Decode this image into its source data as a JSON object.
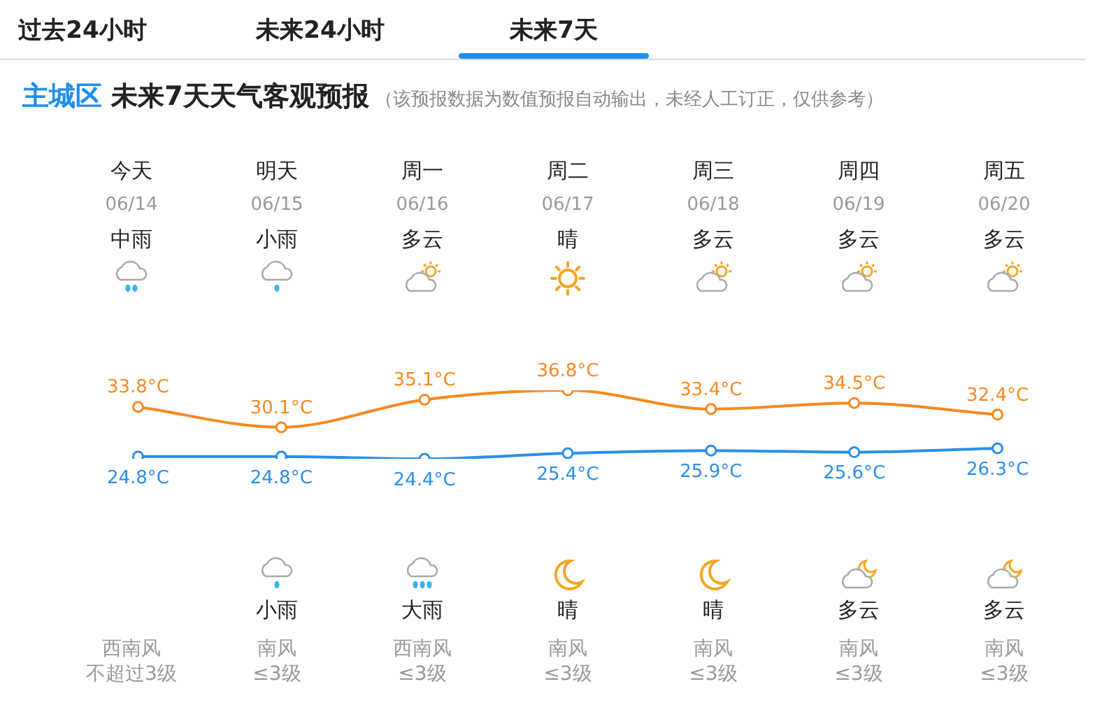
{
  "chart_data": {
    "type": "line",
    "title": "主城区 未来7天天气客观预报",
    "subtitle": "（该预报数据为数值预报自动输出，未经人工订正，仅供参考）",
    "categories": [
      "今天",
      "明天",
      "周一",
      "周二",
      "周三",
      "周四",
      "周五"
    ],
    "series": [
      {
        "color": "#f7891f",
        "values": [
          33.8,
          30.1,
          35.1,
          36.8,
          33.4,
          34.5,
          32.4
        ],
        "value_labels": [
          "33.8°C",
          "30.1°C",
          "35.1°C",
          "36.8°C",
          "33.4°C",
          "34.5°C",
          "32.4°C"
        ]
      },
      {
        "color": "#2b8ee8",
        "values": [
          24.8,
          24.8,
          24.4,
          25.4,
          25.9,
          25.6,
          26.3
        ],
        "value_labels": [
          "24.8°C",
          "24.8°C",
          "24.4°C",
          "25.4°C",
          "25.9°C",
          "25.6°C",
          "26.3°C"
        ]
      }
    ],
    "marker": "circle",
    "line_style": "solid",
    "legend": false,
    "annotations": [
      "过去24小时",
      "未来24小时",
      "未来7天",
      "06/14",
      "06/15",
      "06/16",
      "06/17",
      "06/18",
      "06/19",
      "06/20",
      "中雨",
      "小雨",
      "多云",
      "晴",
      "多云",
      "多云",
      "多云",
      "小雨",
      "大雨",
      "晴",
      "晴",
      "多云",
      "多云",
      "西南风",
      "南风",
      "西南风",
      "南风",
      "南风",
      "南风",
      "南风",
      "不超过3级",
      "≤3级",
      "≤3级",
      "≤3级",
      "≤3级",
      "≤3级",
      "≤3级"
    ]
  }
}
